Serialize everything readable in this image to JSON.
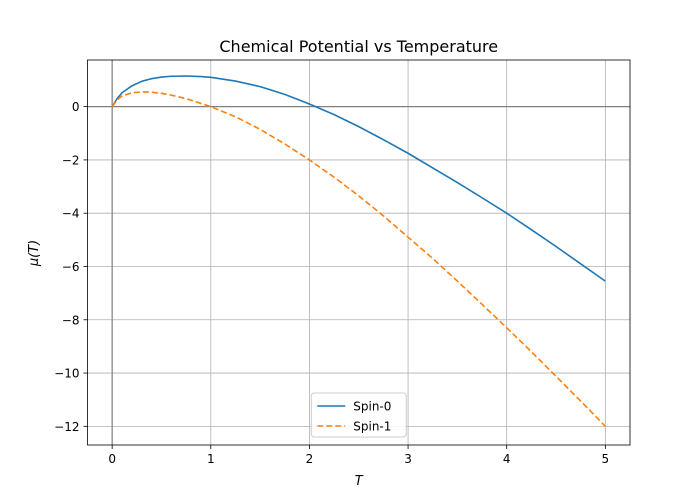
{
  "chart_data": {
    "type": "line",
    "title": "Chemical Potential vs Temperature",
    "xlabel": "T",
    "ylabel": "μ(T)",
    "xlim": [
      -0.25,
      5.25
    ],
    "ylim": [
      -12.7,
      1.75
    ],
    "x_ticks": [
      0,
      1,
      2,
      3,
      4,
      5
    ],
    "y_ticks": [
      0,
      -2,
      -4,
      -6,
      -8,
      -10,
      -12
    ],
    "x_tick_labels": [
      "0",
      "1",
      "2",
      "3",
      "4",
      "5"
    ],
    "y_tick_labels": [
      "0",
      "−2",
      "−4",
      "−6",
      "−8",
      "−10",
      "−12"
    ],
    "grid": true,
    "reference_lines": {
      "horizontal": 0,
      "vertical": 0
    },
    "legend": {
      "position": "lower center"
    },
    "series": [
      {
        "name": "Spin-0",
        "color": "#1f77b4",
        "linestyle": "solid",
        "x": [
          0,
          0.05,
          0.1,
          0.2,
          0.3,
          0.4,
          0.5,
          0.6,
          0.75,
          0.9,
          1.0,
          1.25,
          1.5,
          1.75,
          2.0,
          2.25,
          2.5,
          2.75,
          3.0,
          3.25,
          3.5,
          3.75,
          4.0,
          4.25,
          4.5,
          4.75,
          5.0
        ],
        "values": [
          0,
          0.3,
          0.52,
          0.78,
          0.95,
          1.05,
          1.11,
          1.14,
          1.15,
          1.13,
          1.1,
          0.96,
          0.75,
          0.46,
          0.1,
          -0.3,
          -0.75,
          -1.24,
          -1.75,
          -2.3,
          -2.85,
          -3.42,
          -4.0,
          -4.62,
          -5.25,
          -5.9,
          -6.55
        ]
      },
      {
        "name": "Spin-1",
        "color": "#ff7f0e",
        "linestyle": "dashed",
        "x": [
          0,
          0.05,
          0.1,
          0.2,
          0.3,
          0.35,
          0.4,
          0.5,
          0.6,
          0.75,
          0.9,
          1.0,
          1.25,
          1.5,
          1.75,
          2.0,
          2.25,
          2.5,
          2.75,
          3.0,
          3.25,
          3.5,
          3.75,
          4.0,
          4.25,
          4.5,
          4.75,
          5.0
        ],
        "values": [
          0,
          0.25,
          0.4,
          0.52,
          0.55,
          0.55,
          0.54,
          0.5,
          0.43,
          0.3,
          0.12,
          0.0,
          -0.38,
          -0.85,
          -1.4,
          -2.0,
          -2.65,
          -3.35,
          -4.1,
          -4.9,
          -5.7,
          -6.55,
          -7.42,
          -8.3,
          -9.2,
          -10.12,
          -11.05,
          -12.0
        ]
      }
    ]
  }
}
